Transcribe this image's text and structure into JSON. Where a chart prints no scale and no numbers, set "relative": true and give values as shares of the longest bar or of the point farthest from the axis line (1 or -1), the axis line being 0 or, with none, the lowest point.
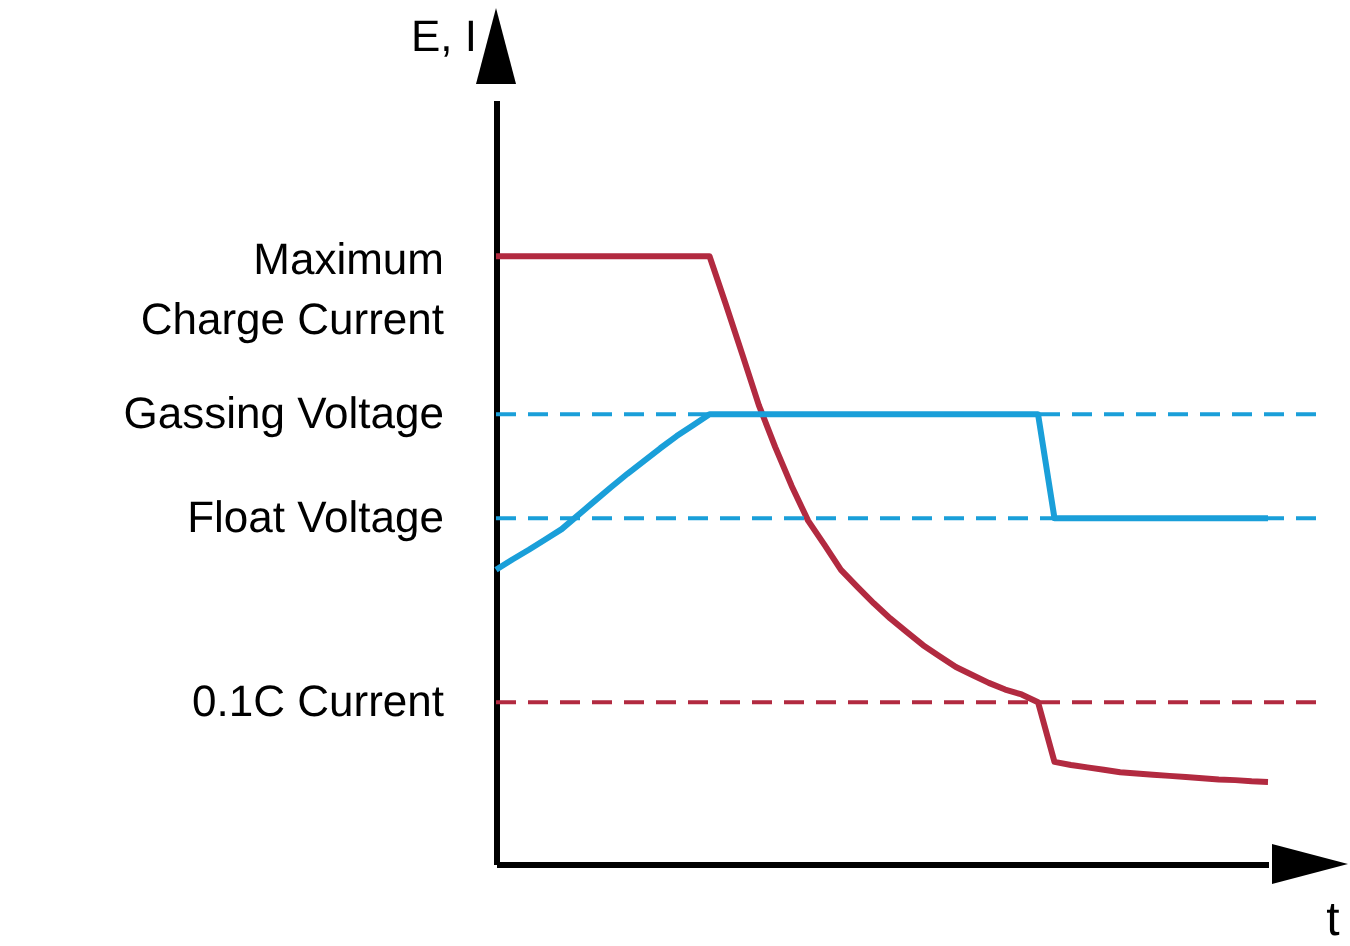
{
  "chart_data": {
    "type": "line",
    "relative": true,
    "xlabel": "t",
    "ylabel": "E, I",
    "categories": [
      null,
      null,
      null,
      null,
      null,
      null,
      null,
      null,
      null,
      null,
      null,
      null,
      null,
      null,
      null,
      null,
      null,
      null,
      null,
      null,
      null,
      null,
      null,
      null,
      null,
      null,
      null,
      null,
      null,
      null,
      null,
      null,
      null,
      null,
      null,
      null,
      null,
      null,
      null,
      null,
      null,
      null,
      null,
      null,
      null,
      null,
      null,
      null
    ],
    "series": [
      {
        "color": "#b22a40",
        "values": [
          1,
          1,
          1,
          1,
          1,
          1,
          1,
          1,
          1,
          1,
          1,
          1,
          1,
          1,
          0.92,
          0.838,
          0.755,
          0.686,
          0.622,
          0.565,
          0.525,
          0.484,
          0.456,
          0.429,
          0.404,
          0.382,
          0.36,
          0.342,
          0.324,
          0.311,
          0.298,
          0.287,
          0.279,
          0.266,
          0.168,
          0.163,
          0.159,
          0.155,
          0.151,
          0.149,
          0.147,
          0.145,
          0.143,
          0.141,
          0.139,
          0.138,
          0.136,
          0.135
        ]
      },
      {
        "color": "#1a9fd9",
        "values": [
          0.484,
          0.501,
          0.517,
          0.534,
          0.551,
          0.574,
          0.597,
          0.62,
          0.642,
          0.663,
          0.684,
          0.704,
          0.722,
          0.74,
          0.74,
          0.74,
          0.74,
          0.74,
          0.74,
          0.74,
          0.74,
          0.74,
          0.74,
          0.74,
          0.74,
          0.74,
          0.74,
          0.74,
          0.74,
          0.74,
          0.74,
          0.74,
          0.74,
          0.74,
          0.569,
          0.569,
          0.569,
          0.569,
          0.569,
          0.569,
          0.569,
          0.569,
          0.569,
          0.569,
          0.569,
          0.569,
          0.569,
          0.569
        ]
      }
    ],
    "ref_lines": [
      {
        "axis": "y",
        "value": 0.74,
        "label": "Gassing Voltage",
        "color": "#1a9fd9",
        "line_style": "dashed"
      },
      {
        "axis": "y",
        "value": 0.569,
        "label": "Float Voltage",
        "color": "#1a9fd9",
        "line_style": "dashed"
      },
      {
        "axis": "y",
        "value": 0.266,
        "label": "0.1C Current",
        "color": "#b22a40",
        "line_style": "dashed"
      }
    ],
    "annotations": [
      "Maximum Charge Current"
    ]
  }
}
